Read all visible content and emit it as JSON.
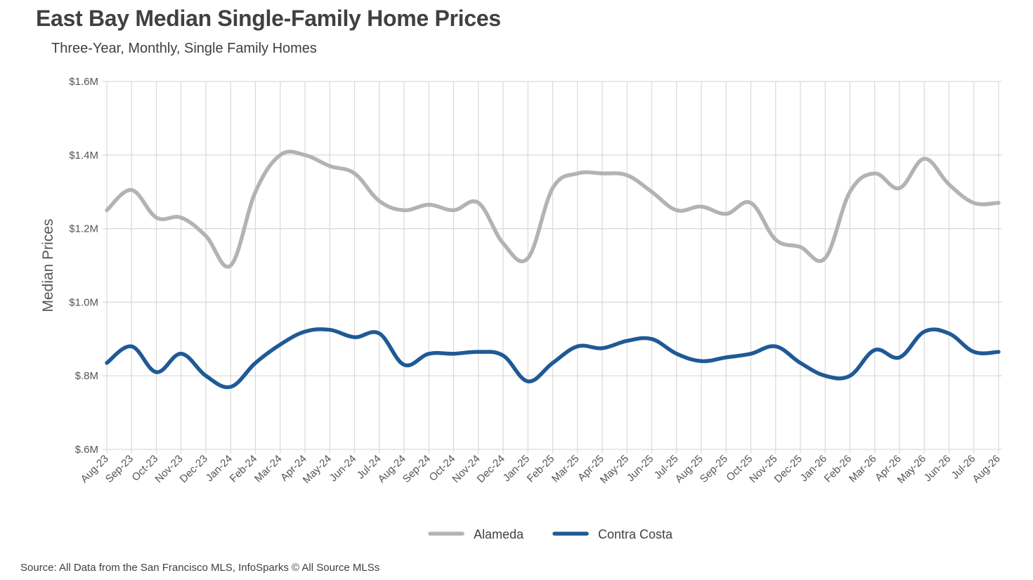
{
  "chart_data": {
    "type": "line",
    "title": "East Bay Median Single-Family Home Prices",
    "subtitle": "Three-Year, Monthly, Single Family Homes",
    "ylabel": "Median Prices",
    "xlabel": "",
    "ylim": [
      600000,
      1600000
    ],
    "yticks": [
      {
        "value": 600000,
        "label": "$.6M"
      },
      {
        "value": 800000,
        "label": "$.8M"
      },
      {
        "value": 1000000,
        "label": "$1.0M"
      },
      {
        "value": 1200000,
        "label": "$1.2M"
      },
      {
        "value": 1400000,
        "label": "$1.4M"
      },
      {
        "value": 1600000,
        "label": "$1.6M"
      }
    ],
    "grid": true,
    "legend_position": "bottom",
    "categories": [
      "Aug-23",
      "Sep-23",
      "Oct-23",
      "Nov-23",
      "Dec-23",
      "Jan-24",
      "Feb-24",
      "Mar-24",
      "Apr-24",
      "May-24",
      "Jun-24",
      "Jul-24",
      "Aug-24",
      "Sep-24",
      "Oct-24",
      "Nov-24",
      "Dec-24",
      "Jan-25",
      "Feb-25",
      "Mar-25",
      "Apr-25",
      "May-25",
      "Jun-25",
      "Jul-25",
      "Aug-25",
      "Sep-25",
      "Oct-25",
      "Nov-25",
      "Dec-25",
      "Jan-26",
      "Feb-26",
      "Mar-26",
      "Apr-26",
      "May-26",
      "Jun-26",
      "Jul-26",
      "Aug-26"
    ],
    "series": [
      {
        "name": "Alameda",
        "color": "#b3b3b3",
        "values": [
          1250000,
          1305000,
          1230000,
          1230000,
          1180000,
          1100000,
          1300000,
          1400000,
          1400000,
          1370000,
          1350000,
          1275000,
          1250000,
          1265000,
          1250000,
          1270000,
          1160000,
          1120000,
          1310000,
          1350000,
          1350000,
          1345000,
          1300000,
          1250000,
          1260000,
          1240000,
          1270000,
          1170000,
          1150000,
          1120000,
          1300000,
          1350000,
          1310000,
          1390000,
          1320000,
          1270000,
          1270000
        ]
      },
      {
        "name": "Contra Costa",
        "color": "#1f5a96",
        "values": [
          835000,
          880000,
          810000,
          860000,
          800000,
          770000,
          835000,
          885000,
          920000,
          925000,
          905000,
          915000,
          830000,
          860000,
          860000,
          865000,
          855000,
          785000,
          835000,
          880000,
          875000,
          895000,
          900000,
          860000,
          840000,
          850000,
          860000,
          880000,
          835000,
          800000,
          800000,
          870000,
          850000,
          920000,
          915000,
          865000,
          865000
        ]
      }
    ]
  },
  "footer": {
    "source": "Source: All Data from the San Francisco MLS, InfoSparks © All Source MLSs"
  }
}
